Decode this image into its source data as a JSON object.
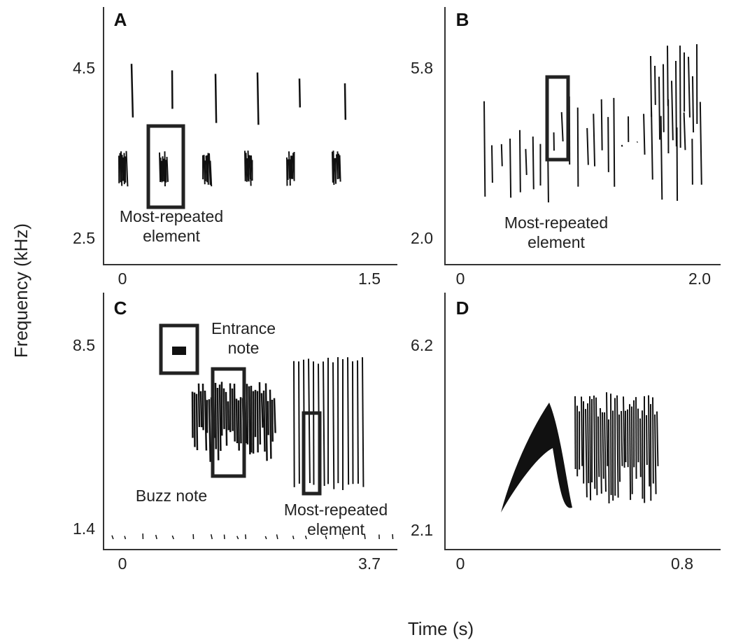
{
  "y_label": "Frequency (kHz)",
  "x_label": "Time (s)",
  "panels": [
    {
      "letter": "A",
      "y_ticks": [
        "4.5",
        "2.5"
      ],
      "x_ticks": [
        "0",
        "1.5"
      ],
      "annotations": [
        "Most-repeated\nelement"
      ]
    },
    {
      "letter": "B",
      "y_ticks": [
        "5.8",
        "2.0"
      ],
      "x_ticks": [
        "0",
        "2.0"
      ],
      "annotations": [
        "Most-repeated\nelement"
      ]
    },
    {
      "letter": "C",
      "y_ticks": [
        "8.5",
        "1.4"
      ],
      "x_ticks": [
        "0",
        "3.7"
      ],
      "annotations": [
        "Entrance\nnote",
        "Buzz note",
        "Most-repeated\nelement"
      ]
    },
    {
      "letter": "D",
      "y_ticks": [
        "6.2",
        "2.1"
      ],
      "x_ticks": [
        "0",
        "0.8"
      ],
      "annotations": []
    }
  ]
}
